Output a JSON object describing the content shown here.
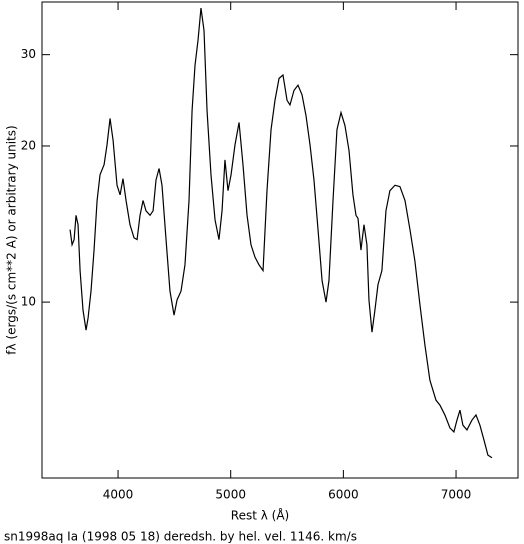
{
  "chart_data": {
    "type": "line",
    "xlabel": "Rest λ (Å)",
    "ylabel": "fλ (ergs/(s cm**2 A) or arbitrary units)",
    "caption": "sn1998aq Ia (1998 05 18) deredsh. by hel. vel.  1146. km/s",
    "yscale": "log",
    "xlim": [
      3325,
      7550
    ],
    "ylim": [
      4.58,
      37.9
    ],
    "xticks": [
      4000,
      5000,
      6000,
      7000
    ],
    "yticks": [
      10,
      20,
      30
    ],
    "color": "#000000",
    "x": [
      3574,
      3592,
      3610,
      3627,
      3645,
      3663,
      3689,
      3716,
      3734,
      3760,
      3787,
      3814,
      3840,
      3876,
      3902,
      3929,
      3956,
      3991,
      4018,
      4044,
      4071,
      4106,
      4142,
      4169,
      4195,
      4222,
      4248,
      4284,
      4311,
      4337,
      4364,
      4390,
      4426,
      4461,
      4497,
      4524,
      4559,
      4594,
      4630,
      4657,
      4683,
      4710,
      4736,
      4763,
      4790,
      4825,
      4861,
      4896,
      4923,
      4949,
      4976,
      5003,
      5038,
      5074,
      5109,
      5145,
      5180,
      5216,
      5251,
      5287,
      5322,
      5358,
      5393,
      5429,
      5464,
      5500,
      5526,
      5562,
      5597,
      5633,
      5668,
      5704,
      5739,
      5775,
      5811,
      5846,
      5872,
      5908,
      5943,
      5979,
      6014,
      6050,
      6085,
      6112,
      6130,
      6156,
      6183,
      6209,
      6227,
      6254,
      6280,
      6307,
      6342,
      6378,
      6413,
      6458,
      6502,
      6547,
      6591,
      6635,
      6680,
      6724,
      6768,
      6822,
      6857,
      6901,
      6946,
      6981,
      7008,
      7035,
      7061,
      7097,
      7141,
      7177,
      7212,
      7248,
      7283,
      7319
    ],
    "values": [
      13.8,
      12.9,
      13.2,
      14.7,
      14.1,
      11.5,
      9.65,
      8.83,
      9.32,
      10.5,
      12.6,
      15.7,
      17.6,
      18.4,
      20.1,
      22.6,
      20.5,
      16.8,
      16.1,
      17.3,
      15.7,
      14.1,
      13.3,
      13.2,
      14.7,
      15.7,
      15.0,
      14.7,
      15.0,
      17.2,
      18.1,
      16.8,
      13.2,
      10.5,
      9.44,
      10.1,
      10.5,
      11.8,
      15.7,
      23.4,
      28.6,
      32.0,
      36.9,
      33.4,
      23.4,
      17.6,
      14.4,
      13.2,
      15.0,
      18.8,
      16.4,
      17.6,
      20.1,
      22.2,
      18.4,
      14.7,
      12.9,
      12.2,
      11.8,
      11.5,
      16.4,
      21.5,
      24.5,
      27.0,
      27.4,
      24.5,
      24.0,
      25.6,
      26.2,
      25.1,
      22.9,
      20.1,
      17.2,
      13.8,
      11.0,
      10.0,
      11.0,
      15.7,
      21.5,
      23.2,
      21.9,
      19.6,
      16.1,
      14.7,
      14.5,
      12.6,
      14.1,
      12.9,
      10.1,
      8.75,
      9.65,
      10.8,
      11.5,
      15.0,
      16.4,
      16.8,
      16.7,
      15.7,
      13.8,
      12.0,
      9.87,
      8.26,
      7.07,
      6.47,
      6.33,
      6.06,
      5.72,
      5.62,
      5.92,
      6.19,
      5.79,
      5.67,
      5.92,
      6.06,
      5.79,
      5.42,
      5.07,
      5.01
    ]
  }
}
